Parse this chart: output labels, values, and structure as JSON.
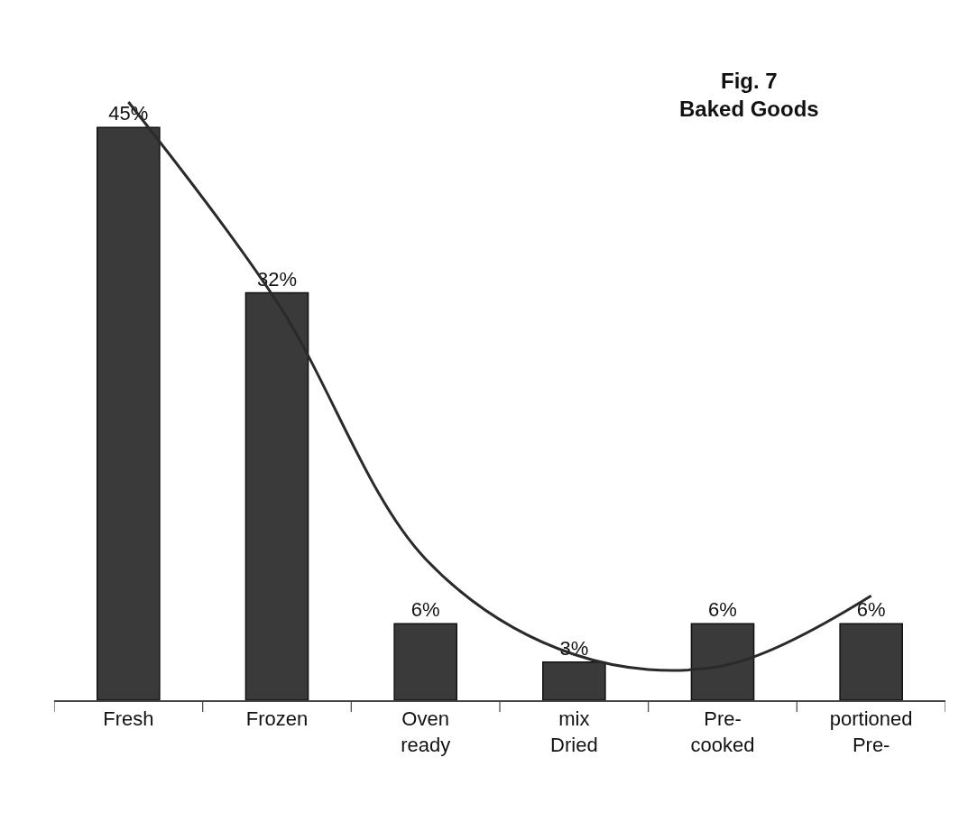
{
  "chart_data": {
    "type": "bar",
    "title": "Fig. 7\nBaked Goods",
    "categories": [
      "Fresh",
      "Frozen",
      "Oven\nready",
      "mix\nDried",
      "Pre-\ncooked",
      "portioned\nPre-"
    ],
    "series": [
      {
        "color": "#3a3a3a",
        "values": [
          45,
          32,
          6,
          3,
          6,
          6
        ],
        "value_labels": [
          "45%",
          "32%",
          "6%",
          "3%",
          "6%",
          "6%"
        ]
      },
      {
        "type": "line",
        "color": "#2a2a2a",
        "values": [
          47,
          31.3,
          11.1,
          3.6,
          2.7,
          8.2
        ]
      }
    ]
  }
}
